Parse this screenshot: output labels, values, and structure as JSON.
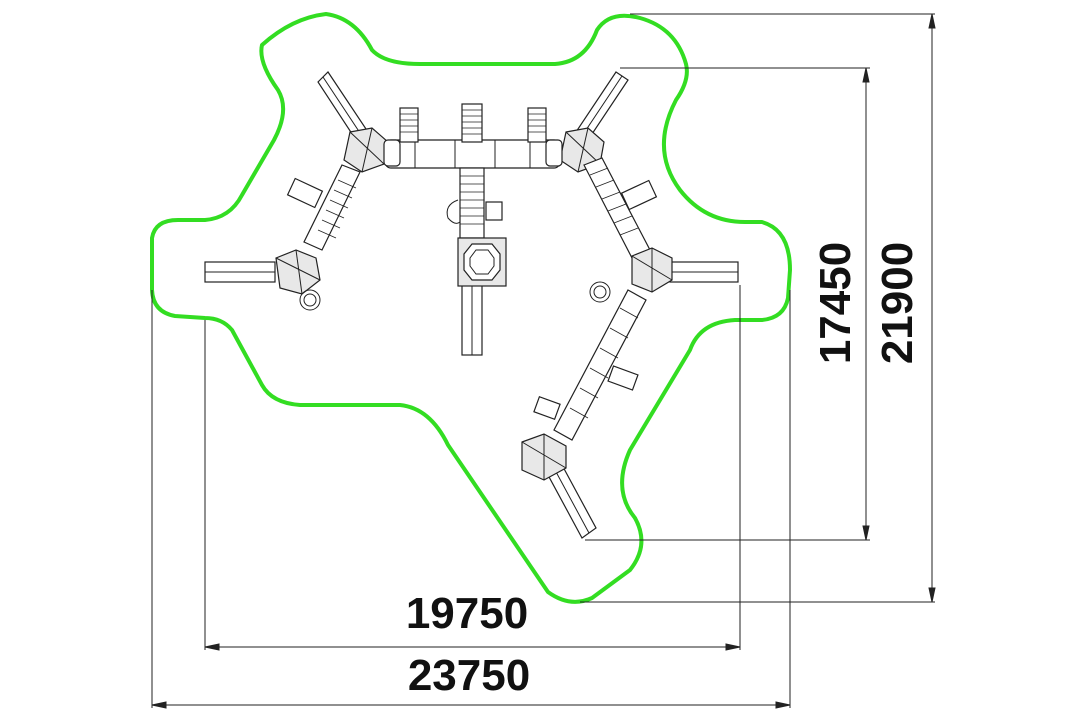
{
  "drawing": {
    "type": "playground-plan",
    "safety_zone_color": "#33dd22",
    "line_color": "#222222",
    "dimensions": {
      "width_inner": "19750",
      "width_outer": "23750",
      "height_inner": "17450",
      "height_outer": "21900"
    }
  }
}
